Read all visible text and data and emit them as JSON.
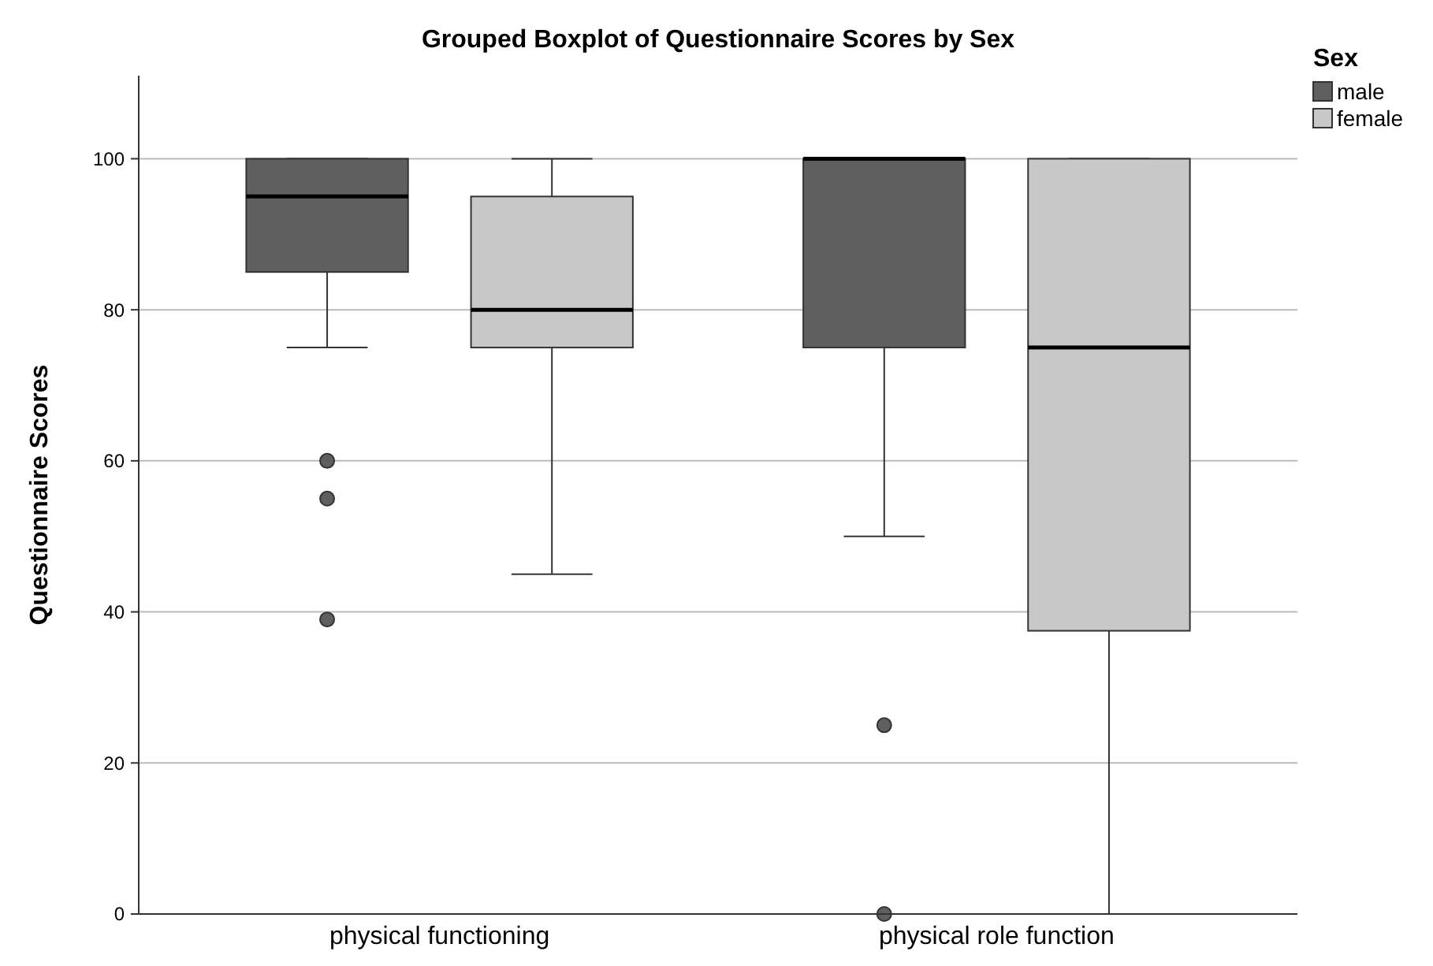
{
  "chart_data": {
    "type": "box",
    "title": "Grouped Boxplot of Questionnaire Scores by Sex",
    "ylabel": "Questionnaire Scores",
    "legend_title": "Sex",
    "categories": [
      "physical functioning",
      "physical role function"
    ],
    "series": [
      {
        "name": "male",
        "color": "#5f5f5f",
        "boxes": [
          {
            "low": 75,
            "q1": 85,
            "median": 95,
            "q3": 100,
            "high": 100,
            "outliers": [
              60,
              55,
              39
            ]
          },
          {
            "low": 50,
            "q1": 75,
            "median": 100,
            "q3": 100,
            "high": 100,
            "outliers": [
              25,
              0
            ]
          }
        ]
      },
      {
        "name": "female",
        "color": "#c8c8c8",
        "boxes": [
          {
            "low": 45,
            "q1": 75,
            "median": 80,
            "q3": 95,
            "high": 100
          },
          {
            "low": 0,
            "q1": 37.5,
            "median": 75,
            "q3": 100,
            "high": 100
          }
        ]
      }
    ],
    "ylim": [
      0,
      111
    ],
    "yticks": [
      0,
      20,
      40,
      60,
      80,
      100
    ],
    "grid": "y",
    "legend": "top right",
    "marker": "circle"
  }
}
